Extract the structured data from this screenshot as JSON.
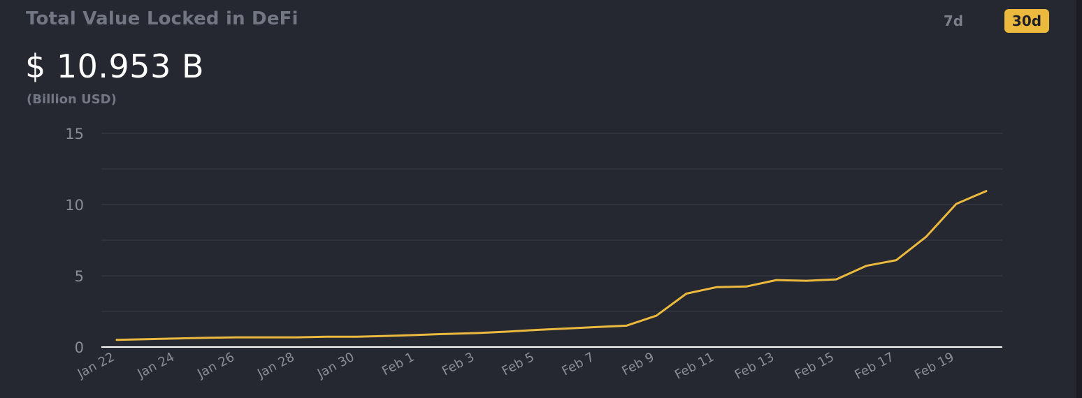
{
  "header": {
    "title": "Total Value Locked in DeFi",
    "value": "$ 10.953 B",
    "unit": "(Billion USD)"
  },
  "range_toggle": {
    "options": [
      "7d",
      "30d"
    ],
    "selected": "30d"
  },
  "colors": {
    "background": "#252731",
    "line": "#eab93e",
    "grid": "#3a3d49",
    "axis_text": "#8a8d97",
    "active_toggle": "#eab93e"
  },
  "chart_data": {
    "type": "line",
    "title": "",
    "xlabel": "",
    "ylabel": "",
    "ylim": [
      0,
      15
    ],
    "yticks": [
      0,
      5,
      10,
      15
    ],
    "grid": true,
    "x": [
      "Jan 22",
      "Jan 23",
      "Jan 24",
      "Jan 25",
      "Jan 26",
      "Jan 27",
      "Jan 28",
      "Jan 29",
      "Jan 30",
      "Jan 31",
      "Feb 1",
      "Feb 2",
      "Feb 3",
      "Feb 4",
      "Feb 5",
      "Feb 6",
      "Feb 7",
      "Feb 8",
      "Feb 9",
      "Feb 10",
      "Feb 11",
      "Feb 12",
      "Feb 13",
      "Feb 14",
      "Feb 15",
      "Feb 16",
      "Feb 17",
      "Feb 18",
      "Feb 19",
      "Feb 20"
    ],
    "xtick_labels": [
      "Jan 22",
      "Jan 24",
      "Jan 26",
      "Jan 28",
      "Jan 30",
      "Feb 1",
      "Feb 3",
      "Feb 5",
      "Feb 7",
      "Feb 9",
      "Feb 11",
      "Feb 13",
      "Feb 15",
      "Feb 17",
      "Feb 19"
    ],
    "series": [
      {
        "values": [
          0.5,
          0.55,
          0.6,
          0.65,
          0.68,
          0.68,
          0.68,
          0.72,
          0.72,
          0.78,
          0.85,
          0.92,
          0.98,
          1.08,
          1.2,
          1.3,
          1.4,
          1.5,
          2.2,
          3.75,
          4.2,
          4.25,
          4.7,
          4.65,
          4.75,
          5.7,
          6.1,
          7.75,
          10.05,
          10.95
        ]
      }
    ]
  }
}
